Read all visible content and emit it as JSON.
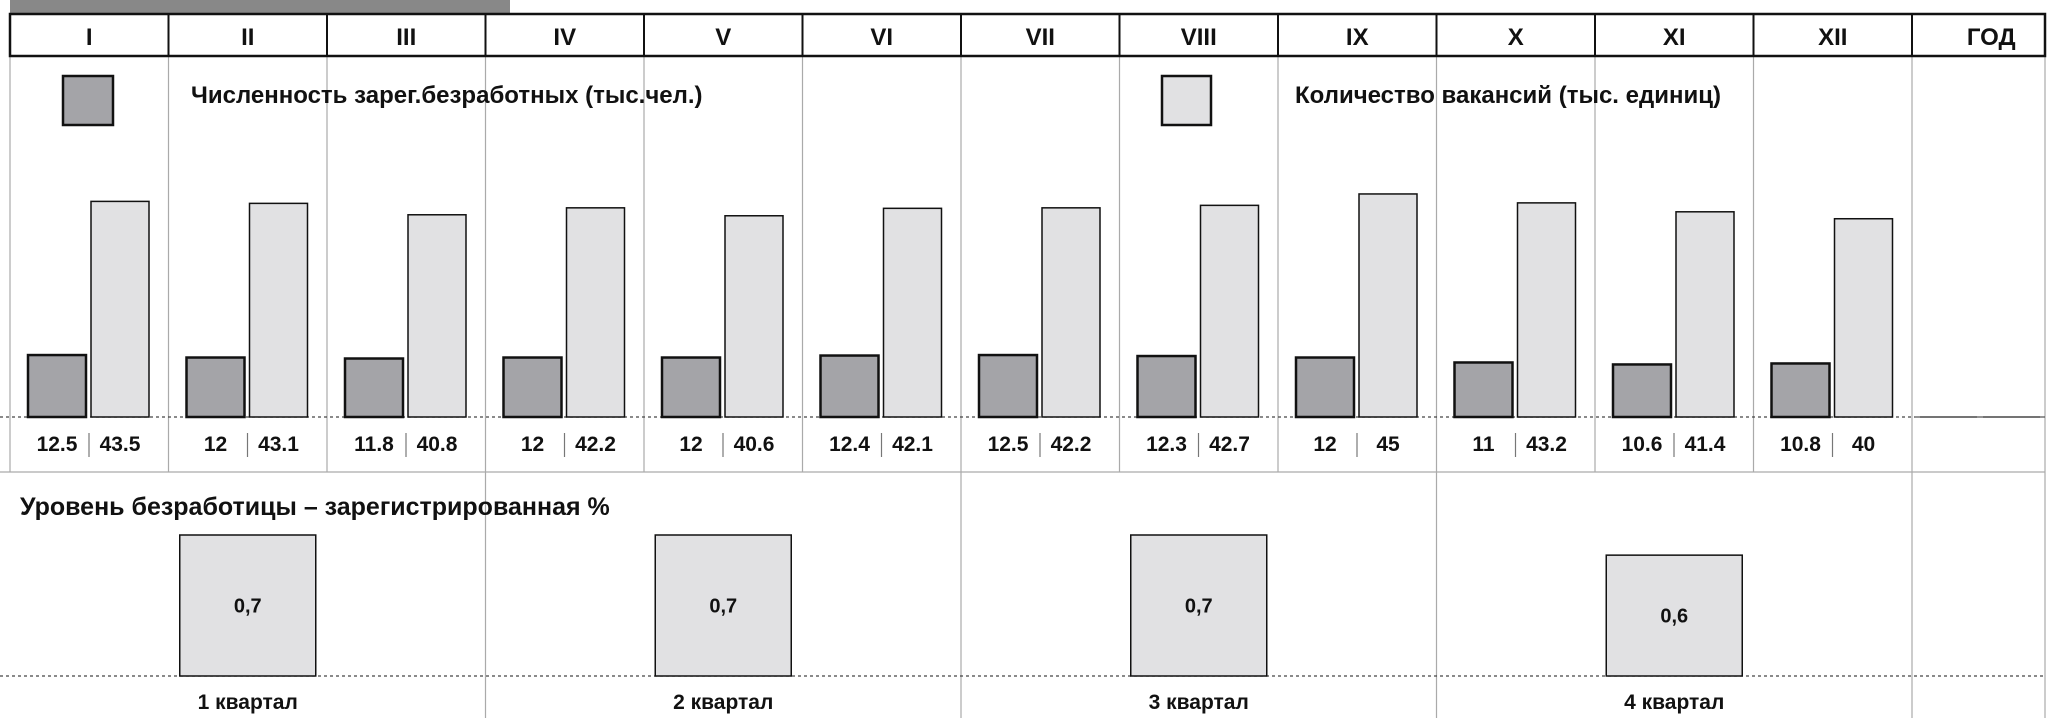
{
  "colors": {
    "unemployed": "#a4a4a8",
    "vacancies": "#e1e1e3",
    "unemployment_rate": "#e1e1e3",
    "outline": "#111111",
    "grid": "#aaaaaa",
    "header_tab": "#888888"
  },
  "chart_data": [
    {
      "type": "bar",
      "categories": [
        "I",
        "II",
        "III",
        "IV",
        "V",
        "VI",
        "VII",
        "VIII",
        "IX",
        "X",
        "XI",
        "XII",
        "ГОД"
      ],
      "series": [
        {
          "name": "Численность зарег.безработных (тыс.чел.)",
          "values": [
            12.5,
            12,
            11.8,
            12,
            12,
            12.4,
            12.5,
            12.3,
            12,
            11,
            10.6,
            10.8,
            null
          ],
          "labels": [
            "12.5",
            "12",
            "11.8",
            "12",
            "12",
            "12.4",
            "12.5",
            "12.3",
            "12",
            "11",
            "10.6",
            "10.8",
            ""
          ]
        },
        {
          "name": "Количество вакансий (тыс. единиц)",
          "values": [
            43.5,
            43.1,
            40.8,
            42.2,
            40.6,
            42.1,
            42.2,
            42.7,
            45,
            43.2,
            41.4,
            40,
            null
          ],
          "labels": [
            "43.5",
            "43.1",
            "40.8",
            "42.2",
            "40.6",
            "42.1",
            "42.2",
            "42.7",
            "45",
            "43.2",
            "41.4",
            "40",
            ""
          ]
        }
      ],
      "ylim": [
        0,
        46
      ],
      "legend": "top",
      "grid": false
    },
    {
      "type": "bar",
      "title": "Уровень безработицы – зарегистрированная %",
      "categories": [
        "1 квартал",
        "2 квартал",
        "3 квартал",
        "4 квартал"
      ],
      "series": [
        {
          "values": [
            0.7,
            0.7,
            0.7,
            0.6
          ],
          "labels": [
            "0,7",
            "0,7",
            "0,7",
            "0,6"
          ]
        }
      ],
      "ylim": [
        0,
        0.7
      ],
      "grid": false
    }
  ]
}
